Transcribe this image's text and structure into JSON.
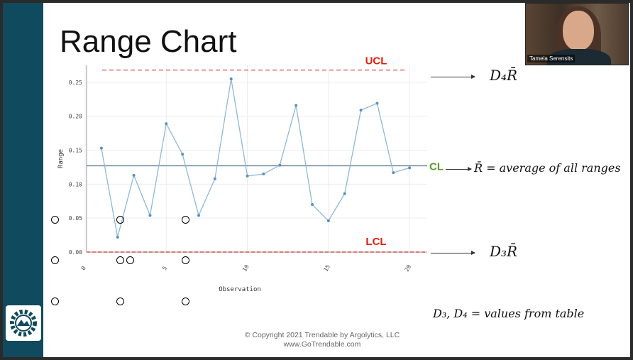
{
  "slide": {
    "title": "Range Chart",
    "copyright_line1": "© Copyright 2021   Trendable by Argolytics, LLC",
    "copyright_line2": "www.GoTrendable.com"
  },
  "video": {
    "participant_name": "Tamela Serensits"
  },
  "annotations": {
    "ucl_formula": "D₄R̄",
    "cl_formula": "R̄ = average of all ranges",
    "lcl_formula": "D₃R̄",
    "table_note": "D₃, D₄ = values from table"
  },
  "colors": {
    "sidebar": "#0f4a5e",
    "line": "#8fb8d8",
    "marker": "#5a8fc0",
    "ucl": "#e06060",
    "lcl": "#d45050",
    "cl_line": "#4a6c8a",
    "ucl_label": "#e02010",
    "cl_label": "#5a9a30"
  },
  "chart_data": {
    "type": "line",
    "xlabel": "Observation",
    "ylabel": "Range",
    "xlim": [
      0,
      21
    ],
    "ylim": [
      0,
      0.275
    ],
    "x_ticks": [
      0,
      5,
      10,
      15,
      20
    ],
    "y_ticks": [
      0.0,
      0.05,
      0.1,
      0.15,
      0.2,
      0.25
    ],
    "y_tick_labels": [
      "0.00",
      "0.05",
      "0.10",
      "0.15",
      "0.20",
      "0.25"
    ],
    "series": [
      {
        "x": [
          1,
          2,
          3,
          4,
          5,
          6,
          7,
          8,
          9,
          10,
          11,
          12,
          13,
          14,
          15,
          16,
          17,
          18,
          19,
          20
        ],
        "values": [
          0.153,
          0.022,
          0.113,
          0.054,
          0.189,
          0.144,
          0.054,
          0.108,
          0.255,
          0.112,
          0.115,
          0.128,
          0.216,
          0.07,
          0.046,
          0.086,
          0.209,
          0.219,
          0.117,
          0.124
        ]
      }
    ],
    "control_limits": {
      "ucl": {
        "label": "UCL",
        "value": 0.268
      },
      "cl": {
        "label": "CL",
        "value": 0.127
      },
      "lcl": {
        "label": "LCL",
        "value": 0.0
      }
    },
    "grid": true
  }
}
